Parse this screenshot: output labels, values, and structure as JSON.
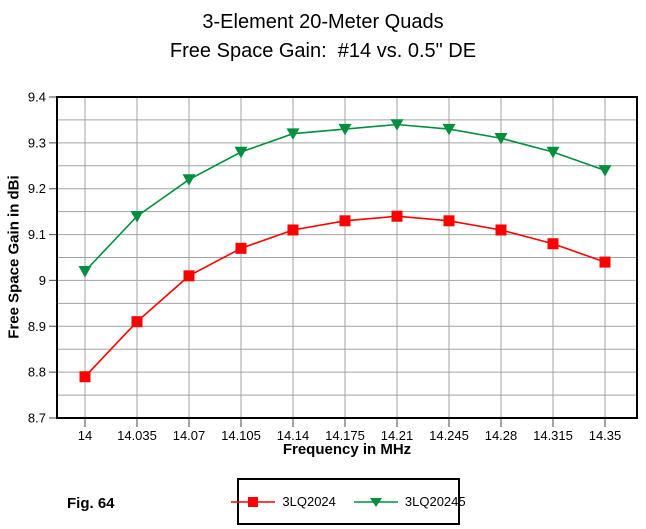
{
  "title": {
    "line1": "3-Element 20-Meter Quads",
    "line2": "Free Space Gain:  #14 vs. 0.5\" DE"
  },
  "fig_label": "Fig. 64",
  "chart_data": {
    "type": "line",
    "title": "3-Element 20-Meter Quads — Free Space Gain: #14 vs. 0.5\" DE",
    "xlabel": "Frequency in MHz",
    "ylabel": "Free Space Gain in dBi",
    "categories": [
      "14",
      "14.035",
      "14.07",
      "14.105",
      "14.14",
      "14.175",
      "14.21",
      "14.245",
      "14.28",
      "14.315",
      "14.35"
    ],
    "series": [
      {
        "name": "3LQ2024",
        "color": "#ff0000",
        "marker": "square",
        "values": [
          8.79,
          8.91,
          9.01,
          9.07,
          9.11,
          9.13,
          9.14,
          9.13,
          9.11,
          9.08,
          9.04
        ]
      },
      {
        "name": "3LQ20245",
        "color": "#008f3f",
        "marker": "triangle-down",
        "values": [
          9.02,
          9.14,
          9.22,
          9.28,
          9.32,
          9.33,
          9.34,
          9.33,
          9.31,
          9.28,
          9.24
        ]
      }
    ],
    "ylim": [
      8.7,
      9.4
    ],
    "y_grid_step": 0.05,
    "y_label_step": 0.1,
    "grid": true,
    "grid_color": "#a3a3a3",
    "axis_color": "#000000",
    "legend_position": "bottom-center"
  }
}
